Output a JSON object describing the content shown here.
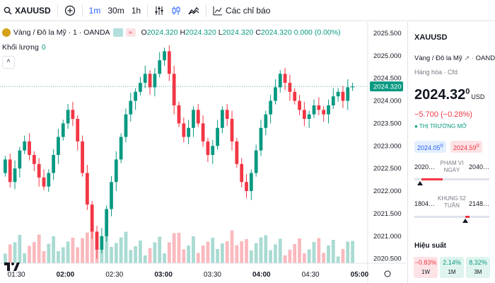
{
  "topbar": {
    "symbol": "XAUUSD",
    "timeframes": [
      "1m",
      "30m",
      "1h"
    ],
    "active_timeframe": "1m",
    "alerts_label": "Các chỉ báo"
  },
  "legend": {
    "name": "Vàng / Đô la Mỹ · 1 · OANDA",
    "open_label": "O",
    "open": "2024.320",
    "high_label": "H",
    "high": "2024.320",
    "low_label": "L",
    "low": "2024.320",
    "close_label": "C",
    "close": "2024.320",
    "change": "0.000 (0.00%)",
    "volume_label": "Khối lượng",
    "volume": "0"
  },
  "price_axis": [
    "2025.500",
    "2025.000",
    "2024.500",
    "2024.000",
    "2023.500",
    "2023.000",
    "2022.500",
    "2022.000",
    "2021.500",
    "2021.000",
    "2020.500"
  ],
  "current_price_label": "2024.320",
  "time_axis": [
    "01:30",
    "02:00",
    "02:30",
    "03:00",
    "03:30",
    "04:00",
    "04:30",
    "05:00"
  ],
  "panel": {
    "symbol": "XAUUSD",
    "description": "Vàng / Đô la Mỹ",
    "exchange": "OANDA",
    "category": "Hàng hóa · Cfd",
    "price": "2024.32",
    "price_sup": "0",
    "currency": "USD",
    "change": "−5.700 (−0.28%)",
    "market_status": "● THỊ TRƯỜNG MỞ",
    "bid": "2024.05",
    "bid_sup": "0",
    "ask": "2024.59",
    "ask_sup": "0",
    "day_range": {
      "low": "2020…",
      "title": "PHẠM VI NGÀY",
      "high": "2040…",
      "position": 0.08
    },
    "week52_range": {
      "low": "1804…",
      "title": "KHUNG 52 TUẦN",
      "high": "2148…",
      "position": 0.68
    },
    "performance_title": "Hiệu suất",
    "performance": [
      {
        "value": "−0.83%",
        "period": "1W",
        "color": "#f23645",
        "bg": "#fde3e6"
      },
      {
        "value": "2.14%",
        "period": "1M",
        "color": "#089981",
        "bg": "#dff4ee"
      },
      {
        "value": "8.32%",
        "period": "3M",
        "color": "#089981",
        "bg": "#dff4ee"
      }
    ]
  },
  "colors": {
    "up": "#089981",
    "down": "#f23645",
    "accent": "#2962ff"
  },
  "chart_data": {
    "type": "candlestick",
    "series_open": [
      2022.4,
      2022.7,
      2022.2,
      2022.5,
      2022.9,
      2023.1,
      2022.8,
      2022.6,
      2022.3,
      2022.1,
      2022.4,
      2022.8,
      2023.2,
      2023.5,
      2023.8,
      2023.6,
      2023.1,
      2022.4,
      2021.7,
      2021.1,
      2020.7,
      2021.0,
      2021.6,
      2022.2,
      2022.7,
      2023.2,
      2023.7,
      2024.0,
      2024.2,
      2024.4,
      2024.6,
      2024.3,
      2024.6,
      2024.9,
      2025.1,
      2024.6,
      2023.9,
      2023.5,
      2023.2,
      2023.4,
      2023.8,
      2023.5,
      2023.1,
      2022.8,
      2023.0,
      2023.4,
      2023.8,
      2023.6,
      2023.1,
      2022.6,
      2022.2,
      2022.0,
      2022.4,
      2022.9,
      2023.4,
      2023.7,
      2024.0,
      2024.3,
      2024.6,
      2024.4,
      2024.2,
      2024.0,
      2023.8,
      2023.6,
      2023.7,
      2023.9,
      2023.8,
      2023.7,
      2023.9,
      2024.1,
      2024.2,
      2024.0,
      2024.3
    ],
    "series_close": [
      2022.7,
      2022.2,
      2022.5,
      2022.9,
      2023.1,
      2022.8,
      2022.6,
      2022.3,
      2022.1,
      2022.4,
      2022.8,
      2023.2,
      2023.5,
      2023.8,
      2023.6,
      2023.1,
      2022.4,
      2021.7,
      2021.1,
      2020.7,
      2021.0,
      2021.6,
      2022.2,
      2022.7,
      2023.2,
      2023.7,
      2024.0,
      2024.2,
      2024.4,
      2024.6,
      2024.3,
      2024.6,
      2024.9,
      2025.1,
      2024.6,
      2023.9,
      2023.5,
      2023.2,
      2023.4,
      2023.8,
      2023.5,
      2023.1,
      2022.8,
      2023.0,
      2023.4,
      2023.8,
      2023.6,
      2023.1,
      2022.6,
      2022.2,
      2022.0,
      2022.4,
      2022.9,
      2023.4,
      2023.7,
      2024.0,
      2024.3,
      2024.6,
      2024.4,
      2024.2,
      2024.0,
      2023.8,
      2023.6,
      2023.7,
      2023.9,
      2023.8,
      2023.7,
      2023.9,
      2024.1,
      2024.2,
      2024.0,
      2024.3,
      2024.32
    ],
    "y_range": [
      2020.4,
      2025.75
    ],
    "x_start": "01:20",
    "x_end": "05:05"
  }
}
